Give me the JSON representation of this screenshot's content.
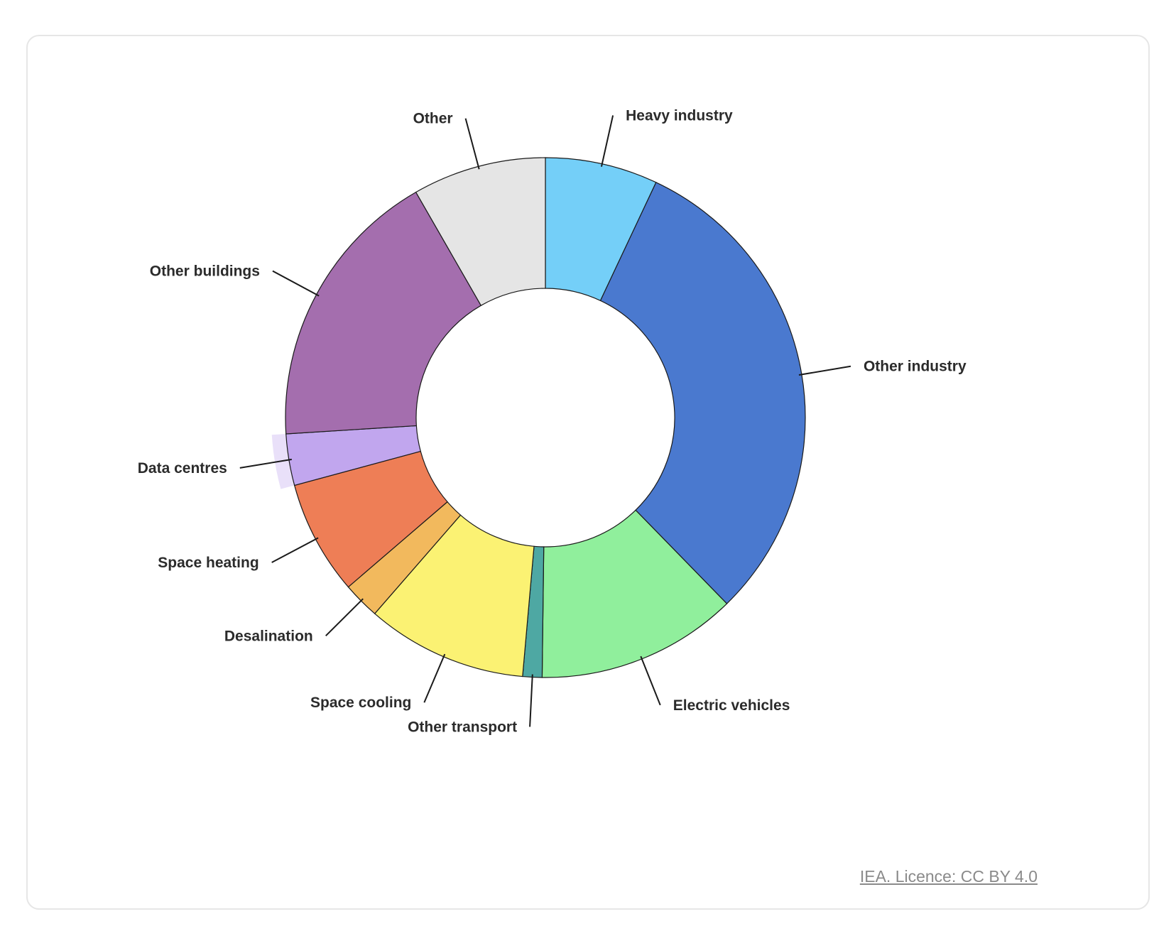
{
  "chart_data": {
    "type": "pie",
    "donut": true,
    "title": "",
    "slices": [
      {
        "label": "Heavy industry",
        "value": 7.0,
        "color": "#74cff8"
      },
      {
        "label": "Other industry",
        "value": 30.7,
        "color": "#4a79cf"
      },
      {
        "label": "Electric vehicles",
        "value": 12.5,
        "color": "#90ef9c"
      },
      {
        "label": "Other transport",
        "value": 1.2,
        "color": "#4ea8a3"
      },
      {
        "label": "Space cooling",
        "value": 10.0,
        "color": "#fbf273"
      },
      {
        "label": "Desalination",
        "value": 2.3,
        "color": "#f2b95d"
      },
      {
        "label": "Space heating",
        "value": 7.1,
        "color": "#ee7e56"
      },
      {
        "label": "Data centres",
        "value": 3.2,
        "color": "#c1a6ee",
        "highlighted": true
      },
      {
        "label": "Other buildings",
        "value": 17.7,
        "color": "#a46eae"
      },
      {
        "label": "Other",
        "value": 8.3,
        "color": "#e5e5e5"
      }
    ],
    "legend": "none"
  },
  "source": {
    "label": "IEA. Licence: CC BY 4.0"
  }
}
